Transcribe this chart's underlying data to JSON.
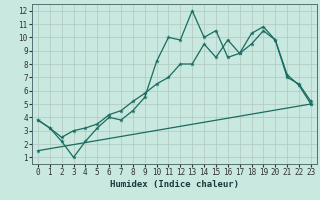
{
  "xlabel": "Humidex (Indice chaleur)",
  "bg_color": "#c8e8e0",
  "grid_color": "#b0c8c0",
  "line_color": "#1a6b60",
  "xlim": [
    -0.5,
    23.5
  ],
  "ylim": [
    0.5,
    12.5
  ],
  "xticks": [
    0,
    1,
    2,
    3,
    4,
    5,
    6,
    7,
    8,
    9,
    10,
    11,
    12,
    13,
    14,
    15,
    16,
    17,
    18,
    19,
    20,
    21,
    22,
    23
  ],
  "yticks": [
    1,
    2,
    3,
    4,
    5,
    6,
    7,
    8,
    9,
    10,
    11,
    12
  ],
  "line1_x": [
    0,
    1,
    2,
    3,
    4,
    5,
    6,
    7,
    8,
    9,
    10,
    11,
    12,
    13,
    14,
    15,
    16,
    17,
    18,
    19,
    20,
    21,
    22,
    23
  ],
  "line1_y": [
    3.8,
    3.2,
    2.2,
    1.0,
    2.2,
    3.2,
    4.0,
    3.8,
    4.5,
    5.5,
    8.2,
    10.0,
    9.8,
    12.0,
    10.0,
    10.5,
    8.5,
    8.8,
    10.3,
    10.8,
    9.8,
    7.2,
    6.4,
    5.0
  ],
  "line2_x": [
    0,
    1,
    2,
    3,
    4,
    5,
    6,
    7,
    8,
    9,
    10,
    11,
    12,
    13,
    14,
    15,
    16,
    17,
    18,
    19,
    20,
    21,
    22,
    23
  ],
  "line2_y": [
    3.8,
    3.2,
    2.5,
    3.0,
    3.2,
    3.5,
    4.2,
    4.5,
    5.2,
    5.8,
    6.5,
    7.0,
    8.0,
    8.0,
    9.5,
    8.5,
    9.8,
    8.8,
    9.5,
    10.5,
    9.8,
    7.0,
    6.5,
    5.2
  ],
  "line3_x": [
    0,
    23
  ],
  "line3_y": [
    1.5,
    5.0
  ],
  "markersize": 3.5
}
